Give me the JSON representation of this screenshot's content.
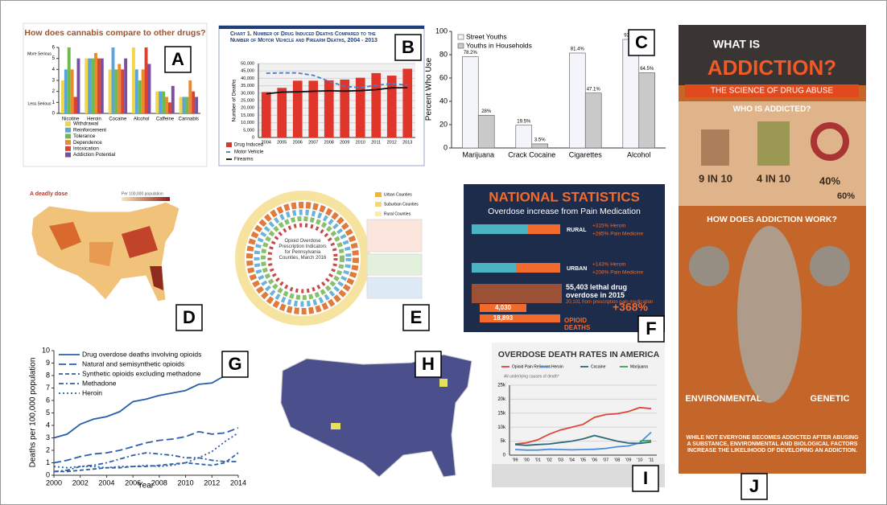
{
  "panel_labels": [
    "A",
    "B",
    "C",
    "D",
    "E",
    "F",
    "G",
    "H",
    "I",
    "J"
  ],
  "chart_data": [
    {
      "type": "bar",
      "title": "How does cannabis compare to other drugs?",
      "y_top_label": "More Serious",
      "y_bottom_label": "Less Serious",
      "categories": [
        "Nicotine",
        "Heroin",
        "Cocaine",
        "Alcohol",
        "Caffeine",
        "Cannabis"
      ],
      "series": [
        {
          "name": "Withdrawal",
          "color": "#f2d54a",
          "values": [
            3,
            5,
            4,
            6,
            2,
            1.5
          ]
        },
        {
          "name": "Reinforcement",
          "color": "#5aa6dc",
          "values": [
            4,
            5,
            6,
            4,
            2,
            1.5
          ]
        },
        {
          "name": "Tolerance",
          "color": "#6dba4e",
          "values": [
            6,
            5,
            4,
            3,
            2,
            1.5
          ]
        },
        {
          "name": "Dependence",
          "color": "#e88a2d",
          "values": [
            4,
            5.5,
            4.5,
            4,
            1.5,
            3
          ]
        },
        {
          "name": "Intoxication",
          "color": "#d9432f",
          "values": [
            1.5,
            5,
            4,
            6,
            1,
            2
          ]
        },
        {
          "name": "Addiction Potential",
          "color": "#7b4fa0",
          "values": [
            5,
            5,
            5,
            4.5,
            2.5,
            1.5
          ]
        }
      ],
      "ylim": [
        0,
        6
      ],
      "yticks": [
        0,
        1,
        2,
        3,
        4,
        5,
        6
      ],
      "grid": false
    },
    {
      "type": "bar",
      "title": "Chart 1. Number of Drug Induced Deaths Compared to the Number of Motor Vehicle and Firearm Deaths, 2004 - 2013",
      "y_label": "Number of Deaths",
      "categories": [
        "2004",
        "2005",
        "2006",
        "2007",
        "2008",
        "2009",
        "2010",
        "2011",
        "2012",
        "2013"
      ],
      "series": [
        {
          "name": "Drug Induced",
          "color": "#e0352b",
          "style": "bar",
          "values": [
            30711,
            33541,
            38396,
            38371,
            38649,
            39147,
            40393,
            43544,
            41819,
            46471
          ]
        },
        {
          "name": "Motor Vehicle",
          "color": "#4a7cc9",
          "style": "dash",
          "values": [
            43432,
            43667,
            43664,
            42031,
            37985,
            34485,
            33687,
            35303,
            36415,
            35369
          ]
        },
        {
          "name": "Firearms",
          "color": "#111111",
          "style": "solid",
          "values": [
            29569,
            30694,
            30896,
            31224,
            31593,
            31347,
            31672,
            32351,
            33563,
            33636
          ]
        }
      ],
      "ylim": [
        0,
        50000
      ],
      "yticks": [
        0,
        {
          "value": 5000,
          "label": "5,000"
        },
        {
          "value": 10000,
          "label": "10,000"
        },
        {
          "value": 15000,
          "label": "15,000"
        },
        {
          "value": 20000,
          "label": "20,000"
        },
        {
          "value": 25000,
          "label": "25,000"
        },
        {
          "value": 30000,
          "label": "30,000"
        },
        {
          "value": 35000,
          "label": "35,000"
        },
        {
          "value": 40000,
          "label": "40,000"
        },
        {
          "value": 45000,
          "label": "45,000"
        },
        {
          "value": 50000,
          "label": "50,000"
        }
      ],
      "grid": true
    },
    {
      "type": "bar",
      "y_label": "Percent Who Use",
      "categories": [
        "Marijuana",
        "Crack Cocaine",
        "Cigarettes",
        "Alcohol"
      ],
      "series": [
        {
          "name": "Street Youths",
          "color": "#f4f4fb",
          "values": [
            78.2,
            19.5,
            81.4,
            93.1
          ],
          "value_labels": [
            "78.2%",
            "19.5%",
            "81.4%",
            "93.1%"
          ]
        },
        {
          "name": "Youths in Households",
          "color": "#c9c9c9",
          "values": [
            28,
            3.5,
            47.1,
            64.5
          ],
          "value_labels": [
            "28%",
            "3.5%",
            "47.1%",
            "64.5%"
          ]
        }
      ],
      "ylim": [
        0,
        100
      ],
      "yticks": [
        0,
        20,
        40,
        60,
        80,
        100
      ],
      "grid": false
    },
    {
      "type": "line",
      "x_label": "Year",
      "y_label": "Deaths per 100,000 population",
      "x": [
        2000,
        2001,
        2002,
        2003,
        2004,
        2005,
        2006,
        2007,
        2008,
        2009,
        2010,
        2011,
        2012,
        2013,
        2014
      ],
      "xlim": [
        2000,
        2014
      ],
      "xticks": [
        2000,
        2002,
        2004,
        2006,
        2008,
        2010,
        2012,
        2014
      ],
      "ylim": [
        0,
        10
      ],
      "yticks": [
        0,
        1,
        2,
        3,
        4,
        5,
        6,
        7,
        8,
        9,
        10
      ],
      "grid": false,
      "series": [
        {
          "name": "Drug overdose deaths involving opioids",
          "color": "#2a5ea8",
          "style": "solid",
          "values": [
            3.0,
            3.3,
            4.1,
            4.5,
            4.7,
            5.1,
            5.9,
            6.1,
            6.4,
            6.6,
            6.8,
            7.3,
            7.4,
            8.0,
            9.0
          ]
        },
        {
          "name": "Natural and semisynthetic opioids",
          "color": "#2a5ea8",
          "style": "long-dash",
          "values": [
            1.0,
            1.2,
            1.5,
            1.7,
            1.8,
            2.0,
            2.3,
            2.6,
            2.8,
            2.9,
            3.1,
            3.5,
            3.3,
            3.4,
            3.8
          ]
        },
        {
          "name": "Synthetic opioids excluding methadone",
          "color": "#2a5ea8",
          "style": "dash",
          "values": [
            0.3,
            0.3,
            0.4,
            0.5,
            0.6,
            0.6,
            0.7,
            0.7,
            0.8,
            0.9,
            1.0,
            0.9,
            0.8,
            1.0,
            1.8
          ]
        },
        {
          "name": "Methadone",
          "color": "#2a5ea8",
          "style": "dash-dot",
          "values": [
            0.3,
            0.4,
            0.7,
            0.8,
            1.0,
            1.3,
            1.6,
            1.8,
            1.7,
            1.6,
            1.4,
            1.4,
            1.2,
            1.1,
            1.1
          ]
        },
        {
          "name": "Heroin",
          "color": "#2a5ea8",
          "style": "dot",
          "values": [
            0.7,
            0.6,
            0.7,
            0.7,
            0.6,
            0.7,
            0.7,
            0.8,
            0.7,
            0.8,
            1.0,
            1.4,
            1.9,
            2.7,
            3.4
          ]
        }
      ]
    },
    {
      "type": "line",
      "title": "OVERDOSE DEATH RATES IN AMERICA",
      "subtitle": "All underlying causes of death*",
      "categories": [
        "'99",
        "'00",
        "'01",
        "'02",
        "'03",
        "'04",
        "'05",
        "'06",
        "'07",
        "'08",
        "'09",
        "'10",
        "'11"
      ],
      "ylim": [
        0,
        25000
      ],
      "yticks": [
        0,
        {
          "value": 5000,
          "label": "5k"
        },
        {
          "value": 10000,
          "label": "10k"
        },
        {
          "value": 15000,
          "label": "15k"
        },
        {
          "value": 20000,
          "label": "20k"
        },
        {
          "value": 25000,
          "label": "25k"
        }
      ],
      "grid": true,
      "series": [
        {
          "name": "Opioid Pain Relievers",
          "color": "#e0453a",
          "style": "solid",
          "values": [
            4000,
            4400,
            5500,
            7500,
            9000,
            10000,
            11000,
            13500,
            14500,
            14800,
            15600,
            17000,
            16600
          ]
        },
        {
          "name": "Heroin",
          "color": "#4a8ee0",
          "style": "solid",
          "values": [
            2000,
            1800,
            1800,
            2100,
            2000,
            1900,
            2000,
            2100,
            2400,
            3000,
            3300,
            4400,
            8200
          ]
        },
        {
          "name": "Cocaine",
          "color": "#2d6b7a",
          "style": "solid",
          "values": [
            3800,
            3500,
            3800,
            4000,
            4500,
            5000,
            5800,
            7000,
            6000,
            5000,
            4300,
            4200,
            4700
          ]
        },
        {
          "name": "Marijuana",
          "color": "#3aa24a",
          "style": "solid",
          "values": [
            null,
            null,
            null,
            null,
            null,
            null,
            null,
            null,
            null,
            null,
            null,
            5000,
            5300
          ]
        }
      ]
    }
  ],
  "map_d": {
    "title": "A deadly dose",
    "legend_title": "Per 100,000 population"
  },
  "ring_e": {
    "title": "Opioid Overdose Prescription Indicators for Pennsylvania Counties, March 2016",
    "legend": [
      "Urban Counties",
      "Suburban Counties",
      "Rural Counties"
    ]
  },
  "infographic_f": {
    "title": "NATIONAL STATISTICS",
    "subtitle": "Overdose increase from Pain Medication",
    "rural": "RURAL",
    "rural_heroin": "+315% Heroin",
    "rural_pain": "+285% Pain Medicine",
    "urban": "URBAN",
    "urban_heroin": "+143% Heroin",
    "urban_pain": "+208% Pain Medicine",
    "total": "55,403 lethal drug overdose in 2015",
    "prescription": "20,101 from prescription pain medication",
    "deaths_a": "4,030",
    "deaths_b": "18,893",
    "opioid": "OPIOID DEATHS",
    "increase": "+368%"
  },
  "infographic_j": {
    "what": "WHAT IS",
    "addiction": "ADDICTION?",
    "science": "THE SCIENCE OF DRUG ABUSE",
    "who": "WHO IS ADDICTED?",
    "stat1": "9 IN 10",
    "stat2": "4 IN 10",
    "stat3": "40%",
    "stat4": "60%",
    "how": "HOW DOES ADDICTION WORK?",
    "environmental": "ENVIRONMENTAL",
    "genetic": "GENETIC",
    "conclusion": "WHILE NOT EVERYONE BECOMES ADDICTED AFTER ABUSING A SUBSTANCE, ENVIRONMENTAL AND BIOLOGICAL FACTORS INCREASE THE LIKELIHOOD OF DEVELOPING AN ADDICTION."
  }
}
